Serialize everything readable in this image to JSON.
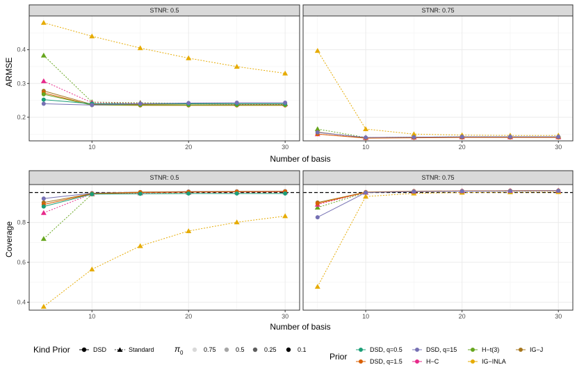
{
  "x_axis_label": "Number of basis",
  "chart_data": [
    {
      "type": "line",
      "panel": "top-left",
      "strip": "STNR: 0.5",
      "ylabel": "ARMSE",
      "xlabel": "Number of basis",
      "x": [
        5,
        10,
        15,
        20,
        25,
        30
      ],
      "xlim": [
        3.5,
        31.5
      ],
      "ylim": [
        0.13,
        0.5
      ],
      "xticks": [
        10,
        20,
        30
      ],
      "yticks": [
        0.2,
        0.3,
        0.4
      ],
      "series": [
        {
          "prior": "IG-INLA",
          "kind": "Standard",
          "values": [
            0.48,
            0.44,
            0.405,
            0.375,
            0.35,
            0.33
          ]
        },
        {
          "prior": "H-t(3)",
          "kind": "Standard",
          "values": [
            0.383,
            0.245,
            0.243,
            0.241,
            0.24,
            0.24
          ]
        },
        {
          "prior": "H-C",
          "kind": "Standard",
          "values": [
            0.307,
            0.243,
            0.241,
            0.24,
            0.239,
            0.239
          ]
        },
        {
          "prior": "IG-J",
          "kind": "DSD",
          "values": [
            0.278,
            0.238,
            0.238,
            0.237,
            0.237,
            0.237
          ]
        },
        {
          "prior": "DSD, q=1.5",
          "kind": "DSD",
          "values": [
            0.272,
            0.236,
            0.235,
            0.235,
            0.235,
            0.235
          ]
        },
        {
          "prior": "H-t(3)",
          "kind": "DSD",
          "values": [
            0.268,
            0.236,
            0.236,
            0.236,
            0.236,
            0.236
          ]
        },
        {
          "prior": "DSD, q=0.5",
          "kind": "DSD",
          "values": [
            0.252,
            0.24,
            0.24,
            0.24,
            0.24,
            0.24
          ]
        },
        {
          "prior": "DSD, q=15",
          "kind": "DSD",
          "values": [
            0.24,
            0.236,
            0.24,
            0.242,
            0.243,
            0.243
          ]
        }
      ]
    },
    {
      "type": "line",
      "panel": "top-right",
      "strip": "STNR: 0.75",
      "ylabel": "ARMSE",
      "xlabel": "Number of basis",
      "x": [
        5,
        10,
        15,
        20,
        25,
        30
      ],
      "xlim": [
        3.5,
        31.5
      ],
      "ylim": [
        0.13,
        0.5
      ],
      "xticks": [
        10,
        20,
        30
      ],
      "yticks": [
        0.2,
        0.3,
        0.4
      ],
      "series": [
        {
          "prior": "IG-INLA",
          "kind": "Standard",
          "values": [
            0.397,
            0.165,
            0.15,
            0.147,
            0.146,
            0.146
          ]
        },
        {
          "prior": "H-t(3)",
          "kind": "Standard",
          "values": [
            0.165,
            0.14,
            0.141,
            0.142,
            0.142,
            0.142
          ]
        },
        {
          "prior": "H-C",
          "kind": "Standard",
          "values": [
            0.15,
            0.139,
            0.14,
            0.141,
            0.141,
            0.141
          ]
        },
        {
          "prior": "IG-J",
          "kind": "DSD",
          "values": [
            0.156,
            0.139,
            0.14,
            0.141,
            0.141,
            0.141
          ]
        },
        {
          "prior": "DSD, q=1.5",
          "kind": "DSD",
          "values": [
            0.15,
            0.138,
            0.139,
            0.14,
            0.14,
            0.14
          ]
        },
        {
          "prior": "DSD, q=15",
          "kind": "DSD",
          "values": [
            0.155,
            0.14,
            0.141,
            0.142,
            0.142,
            0.142
          ]
        }
      ]
    },
    {
      "type": "line",
      "panel": "bottom-left",
      "strip": "STNR: 0.5",
      "ylabel": "Coverage",
      "xlabel": "Number of basis",
      "x": [
        5,
        10,
        15,
        20,
        25,
        30
      ],
      "xlim": [
        3.5,
        31.5
      ],
      "ylim": [
        0.36,
        0.99
      ],
      "xticks": [
        10,
        20,
        30
      ],
      "yticks": [
        0.4,
        0.6,
        0.8
      ],
      "reference_line": 0.95,
      "series": [
        {
          "prior": "IG-INLA",
          "kind": "Standard",
          "values": [
            0.378,
            0.565,
            0.682,
            0.757,
            0.801,
            0.832
          ]
        },
        {
          "prior": "H-t(3)",
          "kind": "Standard",
          "values": [
            0.718,
            0.942,
            0.947,
            0.95,
            0.952,
            0.953
          ]
        },
        {
          "prior": "H-C",
          "kind": "Standard",
          "values": [
            0.848,
            0.944,
            0.948,
            0.951,
            0.952,
            0.953
          ]
        },
        {
          "prior": "DSD, q=15",
          "kind": "DSD",
          "values": [
            0.92,
            0.947,
            0.952,
            0.955,
            0.956,
            0.957
          ]
        },
        {
          "prior": "IG-J",
          "kind": "DSD",
          "values": [
            0.9,
            0.945,
            0.952,
            0.954,
            0.955,
            0.956
          ]
        },
        {
          "prior": "DSD, q=1.5",
          "kind": "DSD",
          "values": [
            0.89,
            0.944,
            0.95,
            0.953,
            0.954,
            0.955
          ]
        },
        {
          "prior": "DSD, q=0.5",
          "kind": "DSD",
          "values": [
            0.88,
            0.942,
            0.944,
            0.945,
            0.945,
            0.945
          ]
        }
      ]
    },
    {
      "type": "line",
      "panel": "bottom-right",
      "strip": "STNR: 0.75",
      "ylabel": "Coverage",
      "xlabel": "Number of basis",
      "x": [
        5,
        10,
        15,
        20,
        25,
        30
      ],
      "xlim": [
        3.5,
        31.5
      ],
      "ylim": [
        0.36,
        0.99
      ],
      "xticks": [
        10,
        20,
        30
      ],
      "yticks": [
        0.4,
        0.6,
        0.8
      ],
      "reference_line": 0.95,
      "series": [
        {
          "prior": "IG-INLA",
          "kind": "Standard",
          "values": [
            0.478,
            0.93,
            0.946,
            0.95,
            0.952,
            0.953
          ]
        },
        {
          "prior": "H-t(3)",
          "kind": "Standard",
          "values": [
            0.875,
            0.95,
            0.955,
            0.957,
            0.958,
            0.959
          ]
        },
        {
          "prior": "H-C",
          "kind": "Standard",
          "values": [
            0.89,
            0.951,
            0.956,
            0.958,
            0.959,
            0.96
          ]
        },
        {
          "prior": "IG-J",
          "kind": "DSD",
          "values": [
            0.9,
            0.952,
            0.957,
            0.958,
            0.959,
            0.96
          ]
        },
        {
          "prior": "DSD, q=1.5",
          "kind": "DSD",
          "values": [
            0.895,
            0.951,
            0.956,
            0.958,
            0.959,
            0.96
          ]
        },
        {
          "prior": "DSD, q=15",
          "kind": "DSD",
          "values": [
            0.826,
            0.95,
            0.955,
            0.957,
            0.958,
            0.959
          ]
        }
      ]
    }
  ],
  "legend": {
    "kind_title": "Kind Prior",
    "kind_items": [
      {
        "label": "DSD",
        "linetype": "solid",
        "shape": "circle"
      },
      {
        "label": "Standard",
        "linetype": "dotted",
        "shape": "triangle"
      }
    ],
    "pi_title": "π",
    "pi_subscript": "0",
    "pi_items": [
      {
        "label": "0.75",
        "color": "#d9d9d9"
      },
      {
        "label": "0.5",
        "color": "#a6a6a6"
      },
      {
        "label": "0.25",
        "color": "#5e5e5e"
      },
      {
        "label": "0.1",
        "color": "#000000"
      }
    ],
    "prior_title": "Prior",
    "prior_items": [
      {
        "label": "DSD, q=0.5",
        "color": "#1b9e77"
      },
      {
        "label": "DSD, q=15",
        "color": "#7570b3"
      },
      {
        "label": "H−t(3)",
        "color": "#66a61e"
      },
      {
        "label": "IG−J",
        "color": "#a6761d"
      },
      {
        "label": "DSD, q=1.5",
        "color": "#d95f02"
      },
      {
        "label": "H−C",
        "color": "#e7298a"
      },
      {
        "label": "IG−INLA",
        "color": "#e6ab02"
      }
    ]
  },
  "colors": {
    "DSD, q=0.5": "#1b9e77",
    "DSD, q=1.5": "#d95f02",
    "DSD, q=15": "#7570b3",
    "H-C": "#e7298a",
    "H-t(3)": "#66a61e",
    "IG-INLA": "#e6ab02",
    "IG-J": "#a6761d",
    "strip_bg": "#d9d9d9",
    "grid": "#ebebeb"
  }
}
